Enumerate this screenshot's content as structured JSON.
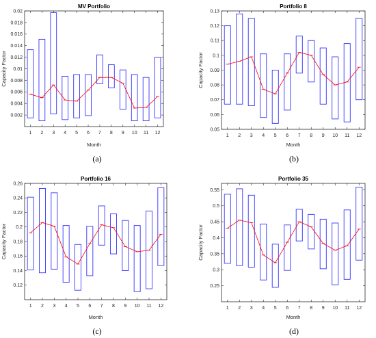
{
  "colors": {
    "box": "#3333ff",
    "mean": "#ff0000",
    "axis": "#262626"
  },
  "chart_data": [
    {
      "type": "box",
      "title": "MV Portfolio",
      "xlabel": "Month",
      "ylabel": "Capacity Factor",
      "caption": "(a)",
      "xlim": [
        0.5,
        12.5
      ],
      "ylim": [
        0,
        0.02
      ],
      "yticks": [
        0.002,
        0.004,
        0.006,
        0.008,
        0.01,
        0.012,
        0.014,
        0.016,
        0.018,
        0.02
      ],
      "ytick_labels": [
        "0.002",
        "0.004",
        "0.006",
        "0.008",
        "0.01",
        "0.012",
        "0.014",
        "0.016",
        "0.018",
        "0.02"
      ],
      "categories": [
        "1",
        "2",
        "3",
        "4",
        "5",
        "6",
        "7",
        "8",
        "9",
        "10",
        "11",
        "12"
      ],
      "box_low": [
        0.0015,
        0.001,
        0.0022,
        0.0012,
        0.0015,
        0.0019,
        0.0074,
        0.0067,
        0.003,
        0.001,
        0.001,
        0.0015
      ],
      "box_high": [
        0.0133,
        0.0151,
        0.0197,
        0.0087,
        0.009,
        0.009,
        0.0124,
        0.0107,
        0.0098,
        0.009,
        0.0085,
        0.012
      ],
      "mean": [
        0.0056,
        0.005,
        0.0072,
        0.0046,
        0.0044,
        0.0063,
        0.0085,
        0.0085,
        0.0075,
        0.0032,
        0.0033,
        0.0052
      ]
    },
    {
      "type": "box",
      "title": "Portfolio 8",
      "xlabel": "Month",
      "ylabel": "Capacity Factor",
      "caption": "(b)",
      "xlim": [
        0.5,
        12.5
      ],
      "ylim": [
        0.05,
        0.13
      ],
      "yticks": [
        0.05,
        0.06,
        0.07,
        0.08,
        0.09,
        0.1,
        0.11,
        0.12,
        0.13
      ],
      "ytick_labels": [
        "0.05",
        "0.06",
        "0.07",
        "0.08",
        "0.09",
        "0.1",
        "0.11",
        "0.12",
        "0.13"
      ],
      "categories": [
        "1",
        "2",
        "3",
        "4",
        "5",
        "6",
        "7",
        "8",
        "9",
        "10",
        "11",
        "12"
      ],
      "box_low": [
        0.067,
        0.067,
        0.066,
        0.058,
        0.054,
        0.063,
        0.088,
        0.082,
        0.067,
        0.057,
        0.055,
        0.07
      ],
      "box_high": [
        0.12,
        0.128,
        0.125,
        0.101,
        0.09,
        0.101,
        0.113,
        0.11,
        0.105,
        0.099,
        0.108,
        0.125
      ],
      "mean": [
        0.094,
        0.096,
        0.099,
        0.077,
        0.074,
        0.088,
        0.102,
        0.1,
        0.087,
        0.08,
        0.082,
        0.092
      ]
    },
    {
      "type": "box",
      "title": "Portfolio 16",
      "xlabel": "Month",
      "ylabel": "Capacity Factor",
      "caption": "(c)",
      "xlim": [
        0.5,
        12.5
      ],
      "ylim": [
        0.1,
        0.26
      ],
      "yticks": [
        0.12,
        0.14,
        0.16,
        0.18,
        0.2,
        0.22,
        0.24,
        0.26
      ],
      "ytick_labels": [
        "0.12",
        "0.14",
        "0.16",
        "0.18",
        "0.2",
        "0.22",
        "0.24",
        "0.26"
      ],
      "categories": [
        "1",
        "2",
        "3",
        "4",
        "5",
        "6",
        "7",
        "8",
        "9",
        "10",
        "11",
        "12"
      ],
      "box_low": [
        0.141,
        0.137,
        0.142,
        0.124,
        0.113,
        0.133,
        0.175,
        0.163,
        0.14,
        0.111,
        0.115,
        0.147
      ],
      "box_high": [
        0.241,
        0.253,
        0.247,
        0.202,
        0.176,
        0.201,
        0.229,
        0.218,
        0.209,
        0.202,
        0.222,
        0.254
      ],
      "mean": [
        0.192,
        0.206,
        0.201,
        0.159,
        0.149,
        0.177,
        0.203,
        0.199,
        0.173,
        0.166,
        0.168,
        0.19
      ]
    },
    {
      "type": "box",
      "title": "Portfolio 35",
      "xlabel": "Month",
      "ylabel": "Capacity Factor",
      "caption": "(d)",
      "xlim": [
        0.5,
        12.5
      ],
      "ylim": [
        0.2,
        0.57
      ],
      "yticks": [
        0.25,
        0.3,
        0.35,
        0.4,
        0.45,
        0.5,
        0.55
      ],
      "ytick_labels": [
        "0.25",
        "0.3",
        "0.35",
        "0.4",
        "0.45",
        "0.5",
        "0.55"
      ],
      "categories": [
        "1",
        "2",
        "3",
        "4",
        "5",
        "6",
        "7",
        "8",
        "9",
        "10",
        "11",
        "12"
      ],
      "box_low": [
        0.32,
        0.313,
        0.308,
        0.268,
        0.245,
        0.298,
        0.39,
        0.365,
        0.303,
        0.253,
        0.27,
        0.33
      ],
      "box_high": [
        0.536,
        0.553,
        0.533,
        0.443,
        0.38,
        0.44,
        0.489,
        0.473,
        0.458,
        0.446,
        0.487,
        0.558
      ],
      "mean": [
        0.43,
        0.455,
        0.447,
        0.346,
        0.322,
        0.386,
        0.45,
        0.434,
        0.382,
        0.361,
        0.375,
        0.427
      ]
    }
  ]
}
